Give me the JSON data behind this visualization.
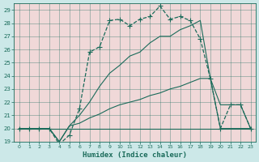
{
  "xlabel": "Humidex (Indice chaleur)",
  "bg_color": "#cce8e8",
  "plot_bg_color": "#f0d8d8",
  "line_color": "#1a6b5a",
  "grid_color": "#1a6b5a",
  "xlim": [
    -0.5,
    23.5
  ],
  "ylim": [
    19,
    29.5
  ],
  "yticks": [
    19,
    20,
    21,
    22,
    23,
    24,
    25,
    26,
    27,
    28,
    29
  ],
  "xticks": [
    0,
    1,
    2,
    3,
    4,
    5,
    6,
    7,
    8,
    9,
    10,
    11,
    12,
    13,
    14,
    15,
    16,
    17,
    18,
    19,
    20,
    21,
    22,
    23
  ],
  "series": [
    {
      "x": [
        0,
        1,
        2,
        3,
        23
      ],
      "y": [
        20,
        20,
        20,
        20,
        20
      ],
      "marker": "+",
      "ms": 3,
      "lw": 0.8,
      "dotted": false
    },
    {
      "x": [
        0,
        1,
        2,
        3,
        4,
        5,
        6,
        7,
        8,
        9,
        10,
        11,
        12,
        13,
        14,
        15,
        16,
        17,
        18,
        19,
        20,
        21,
        22,
        23
      ],
      "y": [
        20,
        20,
        20,
        20,
        19.0,
        20.2,
        21.0,
        22.0,
        23.2,
        24.2,
        24.8,
        25.5,
        25.8,
        26.5,
        27.0,
        27.0,
        27.5,
        27.8,
        28.2,
        23.8,
        20,
        20,
        20,
        20
      ],
      "marker": null,
      "ms": 0,
      "lw": 0.8,
      "dotted": false
    },
    {
      "x": [
        0,
        1,
        2,
        3,
        4,
        5,
        6,
        7,
        8,
        9,
        10,
        11,
        12,
        13,
        14,
        15,
        16,
        17,
        18,
        19,
        20,
        21,
        22,
        23
      ],
      "y": [
        20,
        20,
        20,
        20,
        19.0,
        20.2,
        20.4,
        20.8,
        21.1,
        21.5,
        21.8,
        22.0,
        22.2,
        22.5,
        22.7,
        23.0,
        23.2,
        23.5,
        23.8,
        23.8,
        21.8,
        21.8,
        21.8,
        20
      ],
      "marker": null,
      "ms": 0,
      "lw": 0.8,
      "dotted": false
    },
    {
      "x": [
        0,
        1,
        2,
        3,
        4,
        5,
        6,
        7,
        8,
        9,
        10,
        11,
        12,
        13,
        14,
        15,
        16,
        17,
        18,
        19,
        20,
        21,
        22,
        23
      ],
      "y": [
        20,
        20,
        20,
        20,
        18.8,
        19.5,
        21.5,
        25.8,
        26.2,
        28.2,
        28.3,
        27.8,
        28.3,
        28.5,
        29.3,
        28.3,
        28.5,
        28.2,
        26.8,
        23.8,
        20,
        21.8,
        21.8,
        20
      ],
      "marker": "+",
      "ms": 4,
      "lw": 0.9,
      "dotted": true
    }
  ]
}
